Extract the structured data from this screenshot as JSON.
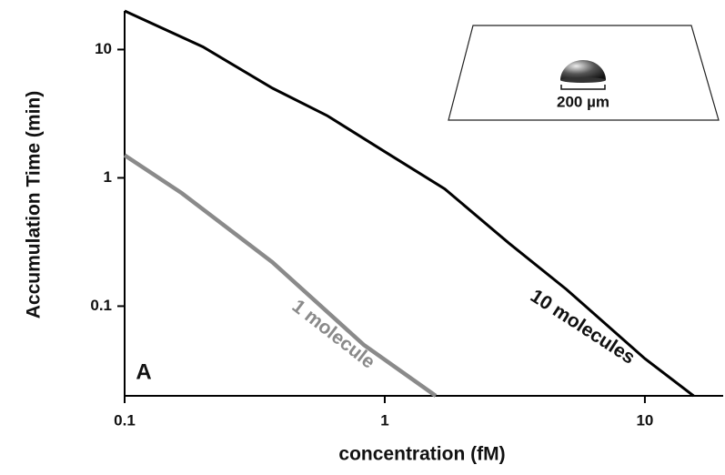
{
  "chart_data": {
    "type": "line",
    "xlabel": "concentration (fM)",
    "ylabel": "Accumulation Time (min)",
    "xscale": "log",
    "yscale": "log",
    "xlim": [
      0.1,
      20
    ],
    "ylim": [
      0.02,
      20
    ],
    "xticks": [
      0.1,
      1,
      10
    ],
    "yticks": [
      0.1,
      1,
      10
    ],
    "series": [
      {
        "name": "10 molecules",
        "color": "#000000",
        "x": [
          0.1,
          0.2,
          0.37,
          0.6,
          1,
          1.7,
          3,
          5,
          10,
          15.4
        ],
        "values": [
          20,
          10.5,
          5,
          3.06,
          1.6,
          0.82,
          0.31,
          0.135,
          0.039,
          0.02
        ]
      },
      {
        "name": "1 molecule",
        "color": "#8a8a8a",
        "x": [
          0.1,
          0.166,
          0.37,
          0.83,
          1.57
        ],
        "values": [
          1.5,
          0.76,
          0.22,
          0.05,
          0.02
        ]
      }
    ],
    "panel_label": "A",
    "inset_label": "200 µm"
  }
}
